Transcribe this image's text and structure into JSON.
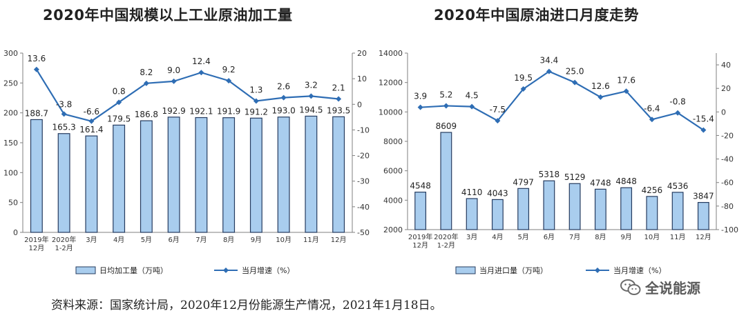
{
  "chart_data": [
    {
      "type": "bar",
      "title": "2020年中国规模以上工业原油加工量",
      "categories": [
        "2019年\n12月",
        "2020年\n1-2月",
        "3月",
        "4月",
        "5月",
        "6月",
        "7月",
        "8月",
        "9月",
        "10月",
        "11月",
        "12月"
      ],
      "series": [
        {
          "name": "日均加工量（万吨）",
          "type": "bar",
          "axis": "left",
          "values": [
            188.7,
            165.3,
            161.4,
            179.5,
            186.8,
            192.9,
            192.1,
            191.9,
            191.2,
            193.0,
            194.5,
            193.5
          ]
        },
        {
          "name": "当月增速（%）",
          "type": "line",
          "axis": "right",
          "values": [
            13.6,
            -3.8,
            -6.6,
            0.8,
            8.2,
            9.0,
            12.4,
            9.2,
            1.3,
            2.6,
            3.2,
            2.1
          ]
        }
      ],
      "ylim_left": [
        0,
        300
      ],
      "yticks_left": [
        0,
        50,
        100,
        150,
        200,
        250,
        300
      ],
      "ylim_right": [
        -50,
        20
      ],
      "yticks_right": [
        -50,
        -40,
        -30,
        -20,
        -10,
        0,
        10,
        20
      ],
      "grid": false,
      "legend": "bottom"
    },
    {
      "type": "bar",
      "title": "2020年中国原油进口月度走势",
      "categories": [
        "2019年\n12月",
        "2020年\n1-2月",
        "3月",
        "4月",
        "5月",
        "6月",
        "7月",
        "8月",
        "9月",
        "10月",
        "11月",
        "12月"
      ],
      "series": [
        {
          "name": "当月进口量（万吨）",
          "type": "bar",
          "axis": "left",
          "values": [
            4548,
            8609,
            4110,
            4043,
            4797,
            5318,
            5129,
            4748,
            4848,
            4256,
            4536,
            3847
          ]
        },
        {
          "name": "当月增速（%）",
          "type": "line",
          "axis": "right",
          "values": [
            3.9,
            5.2,
            4.5,
            -7.5,
            19.5,
            34.4,
            25.0,
            12.6,
            17.6,
            -6.4,
            -0.8,
            -15.4
          ]
        }
      ],
      "ylim_left": [
        2000,
        14000
      ],
      "yticks_left": [
        2000,
        4000,
        6000,
        8000,
        10000,
        12000,
        14000
      ],
      "ylim_right": [
        -100,
        50
      ],
      "yticks_right": [
        -100,
        -80,
        -60,
        -40,
        -20,
        0,
        20,
        40
      ],
      "grid": false,
      "legend": "bottom"
    }
  ],
  "style": {
    "bar_fill": "#a9cdee",
    "bar_stroke": "#243a5e",
    "line_color": "#2e6db4",
    "axis_color": "#7f7f7f"
  },
  "source_note": "资料来源：国家统计局，2020年12月份能源生产情况，2021年1月18日。",
  "watermark": {
    "text": "全说能源",
    "icon": "wechat-icon"
  }
}
